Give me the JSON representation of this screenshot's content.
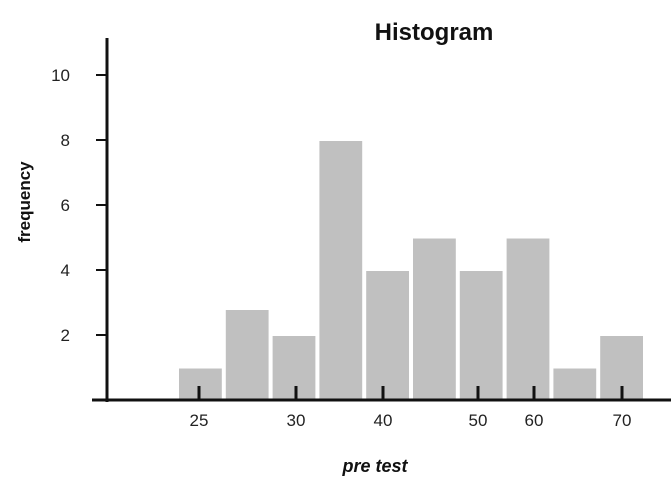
{
  "chart_data": {
    "type": "bar",
    "title": "Histogram",
    "xlabel": "pre test",
    "ylabel": "frequency",
    "ylim": [
      0,
      11
    ],
    "y_ticks": [
      2,
      4,
      6,
      8,
      10
    ],
    "x_tick_labels": [
      "25",
      "30",
      "40",
      "50",
      "60",
      "70"
    ],
    "bars": [
      1,
      2.8,
      2,
      8,
      4,
      5,
      4,
      5,
      1,
      2
    ],
    "bar_color": "#c0c0c0",
    "axis_color": "#111111",
    "grid": false
  }
}
